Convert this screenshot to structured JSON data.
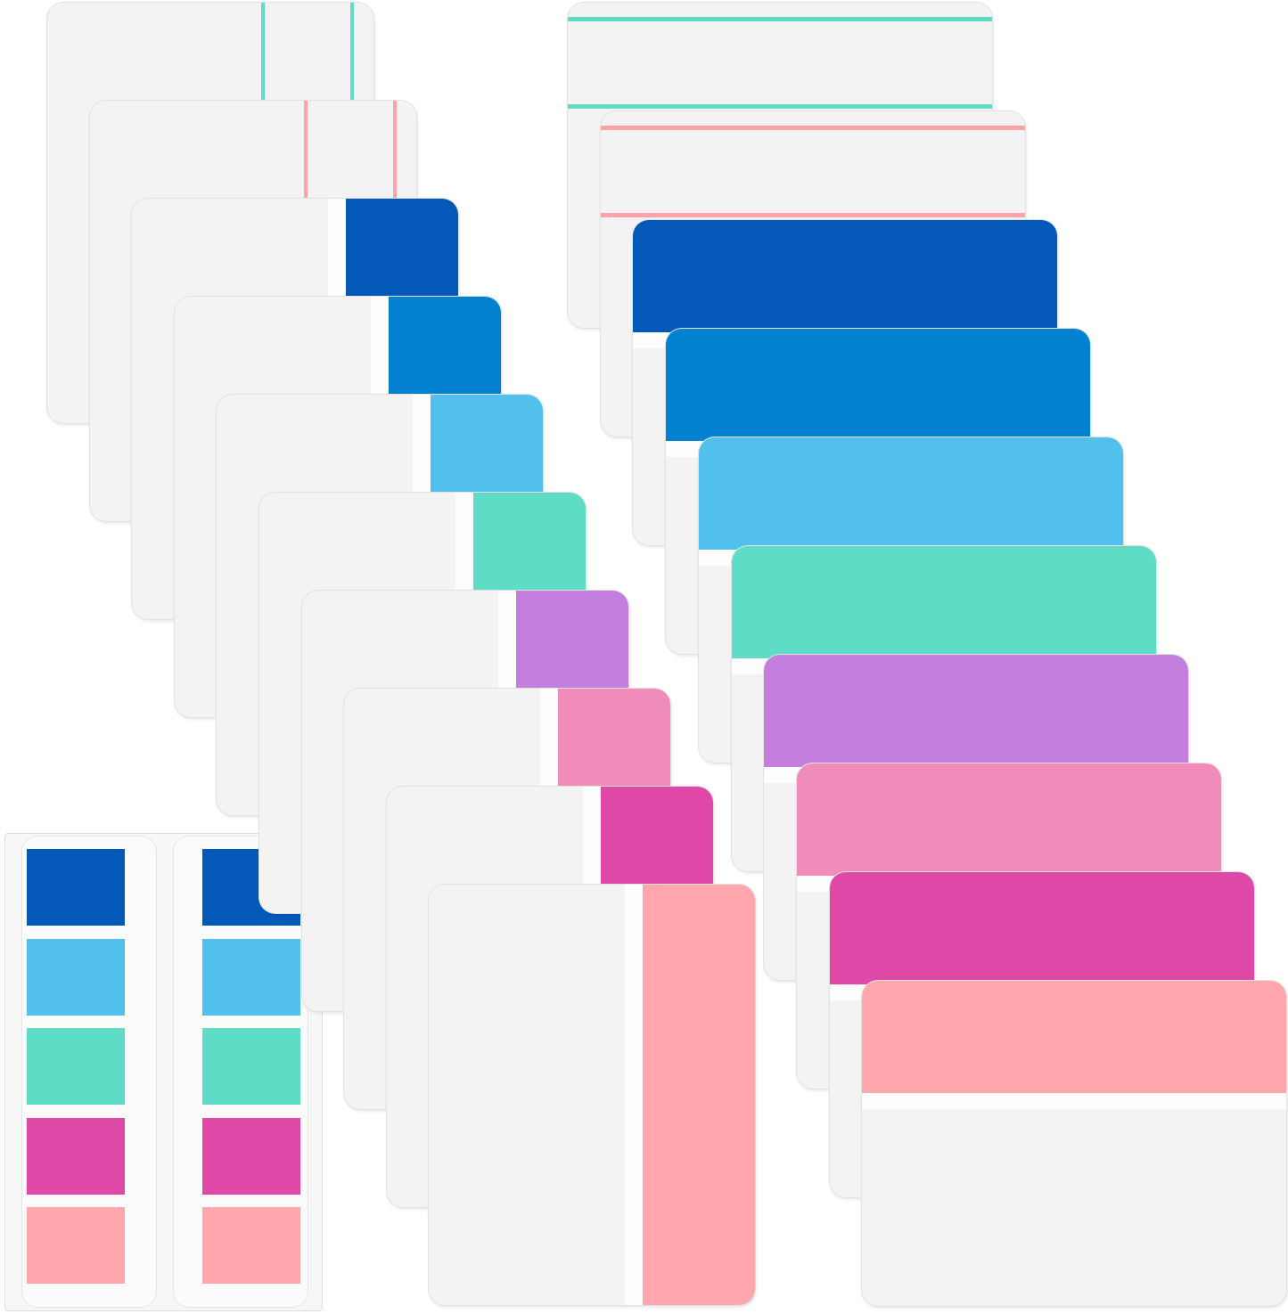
{
  "product": {
    "vertical_tabs": [
      {
        "style": "outline",
        "color": "#5FDCC6"
      },
      {
        "style": "outline",
        "color": "#FFA3A8"
      },
      {
        "style": "solid",
        "color": "#0358B8"
      },
      {
        "style": "solid",
        "color": "#0281D1"
      },
      {
        "style": "solid",
        "color": "#51C0EC"
      },
      {
        "style": "solid",
        "color": "#5EDCC6"
      },
      {
        "style": "solid",
        "color": "#C47FDE"
      },
      {
        "style": "solid",
        "color": "#F08BBA"
      },
      {
        "style": "solid",
        "color": "#E048A8"
      },
      {
        "style": "solid",
        "color": "#FFA7AC"
      }
    ],
    "horizontal_tabs": [
      {
        "style": "outline",
        "color": "#5FDCC6"
      },
      {
        "style": "outline",
        "color": "#FFA3A8"
      },
      {
        "style": "solid",
        "color": "#0358B8"
      },
      {
        "style": "solid",
        "color": "#0281D1"
      },
      {
        "style": "solid",
        "color": "#51C0EC"
      },
      {
        "style": "solid",
        "color": "#5EDCC6"
      },
      {
        "style": "solid",
        "color": "#C47FDE"
      },
      {
        "style": "solid",
        "color": "#F08BBA"
      },
      {
        "style": "solid",
        "color": "#E048A8"
      },
      {
        "style": "solid",
        "color": "#FFA7AC"
      }
    ],
    "flag_sheet_colors": [
      "#0358B8",
      "#51C0EC",
      "#5EDCC6",
      "#E048A8",
      "#FFA7AC"
    ]
  }
}
